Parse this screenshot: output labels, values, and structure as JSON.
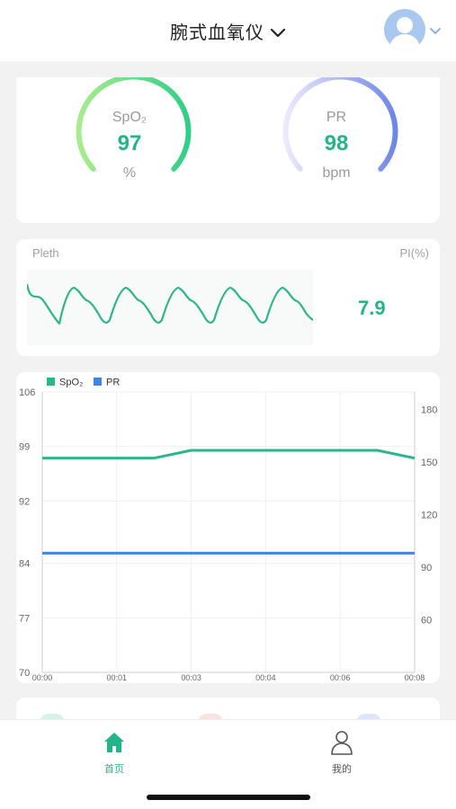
{
  "header": {
    "title": "腕式血氧仪"
  },
  "gauges": {
    "spo2": {
      "label": "SpO₂",
      "value": "97",
      "unit": "%",
      "color_start": "#a8ec8e",
      "color_end": "#2fcf86",
      "fill_fraction": 0.97
    },
    "pr": {
      "label": "PR",
      "value": "98",
      "unit": "bpm",
      "color_start": "#e6e3fa",
      "color_end": "#6e86e8",
      "fill_fraction": 0.98
    }
  },
  "pleth": {
    "label": "Pleth",
    "pi_label": "PI(%)",
    "pi_value": "7.9"
  },
  "chart_data": {
    "type": "line",
    "legend": [
      "SpO₂",
      "PR"
    ],
    "legend_position": "top-left",
    "x_tick_labels": [
      "00:00",
      "00:01",
      "00:03",
      "00:04",
      "00:06",
      "00:08"
    ],
    "y_left_ticks": [
      "106",
      "99",
      "92",
      "84",
      "77",
      "70"
    ],
    "y_right_ticks": [
      "180",
      "150",
      "120",
      "90",
      "60"
    ],
    "ylim_left": [
      70,
      106
    ],
    "ylim_right": [
      30,
      190
    ],
    "grid": true,
    "x": [
      0,
      1,
      2,
      3,
      4,
      5,
      6,
      7,
      8,
      9,
      10
    ],
    "series": [
      {
        "name": "SpO₂",
        "axis": "left",
        "color": "#2bb68c",
        "values": [
          97.5,
          97.5,
          97.5,
          97.5,
          98.5,
          98.5,
          98.5,
          98.5,
          98.5,
          98.5,
          97.5
        ]
      },
      {
        "name": "PR",
        "axis": "right",
        "color": "#3f86e0",
        "values": [
          98,
          98,
          98,
          98,
          98,
          98,
          98,
          98,
          98,
          98,
          98
        ]
      }
    ]
  },
  "tabs": [
    {
      "label": "首页",
      "color": "#22b58a",
      "icon": "home-icon"
    },
    {
      "label": "我的",
      "color": "#555555",
      "icon": "user-icon"
    }
  ]
}
